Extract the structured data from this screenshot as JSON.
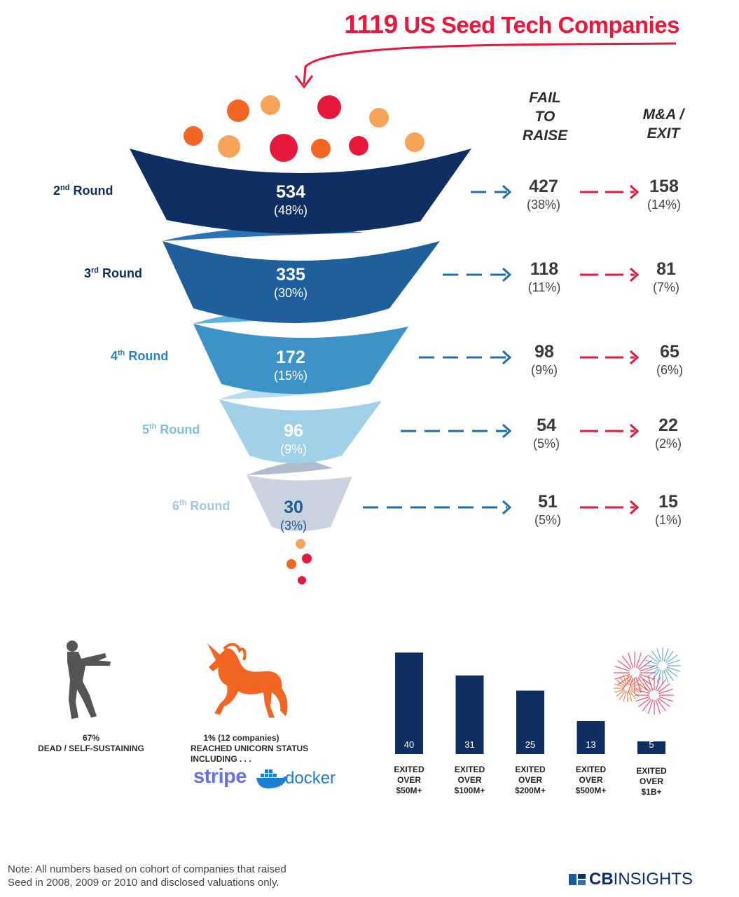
{
  "title": {
    "number": "1119",
    "text": "US Seed Tech Companies"
  },
  "columns": {
    "fail": "FAIL\nTO\nRAISE",
    "exit": "M&A /\nEXIT"
  },
  "colors": {
    "accent_red": "#e8173c",
    "navy": "#0f2f63",
    "blue": "#1d5c98",
    "mid_blue": "#3b8fc6",
    "light_blue": "#8fc6e2",
    "grey": "#c5d0da",
    "orange": "#f26522"
  },
  "chart_data": [
    {
      "type": "funnel",
      "title": "1119 US Seed Tech Companies",
      "stages": [
        {
          "round": "2",
          "suffix": "nd",
          "label": " Round",
          "count": 534,
          "pct": "(48%)",
          "fail": 427,
          "fail_pct": "(38%)",
          "exit": 158,
          "exit_pct": "(14%)"
        },
        {
          "round": "3",
          "suffix": "rd",
          "label": " Round",
          "count": 335,
          "pct": "(30%)",
          "fail": 118,
          "fail_pct": "(11%)",
          "exit": 81,
          "exit_pct": "(7%)"
        },
        {
          "round": "4",
          "suffix": "th",
          "label": " Round",
          "count": 172,
          "pct": "(15%)",
          "fail": 98,
          "fail_pct": "(9%)",
          "exit": 65,
          "exit_pct": "(6%)"
        },
        {
          "round": "5",
          "suffix": "th",
          "label": " Round",
          "count": 96,
          "pct": "(9%)",
          "fail": 54,
          "fail_pct": "(5%)",
          "exit": 22,
          "exit_pct": "(2%)"
        },
        {
          "round": "6",
          "suffix": "th",
          "label": " Round",
          "count": 30,
          "pct": "(3%)",
          "fail": 51,
          "fail_pct": "(5%)",
          "exit": 15,
          "exit_pct": "(1%)"
        }
      ]
    },
    {
      "type": "bar",
      "categories": [
        "EXITED OVER $50M+",
        "EXITED OVER $100M+",
        "EXITED OVER $200M+",
        "EXITED OVER $500M+",
        "EXITED OVER $1B+"
      ],
      "category_lines": [
        [
          "EXITED",
          "OVER",
          "$50M+"
        ],
        [
          "EXITED",
          "OVER",
          "$100M+"
        ],
        [
          "EXITED",
          "OVER",
          "$200M+"
        ],
        [
          "EXITED",
          "OVER",
          "$500M+"
        ],
        [
          "EXITED",
          "OVER",
          "$1B+"
        ]
      ],
      "values": [
        40,
        31,
        25,
        13,
        5
      ],
      "ylim": [
        0,
        42
      ],
      "color": "#0f2f63"
    }
  ],
  "bottom": {
    "dead_pct": "67%",
    "dead_label": "DEAD / SELF-SUSTAINING",
    "unicorn_line1": "1%  (12 companies)",
    "unicorn_line2": "REACHED UNICORN STATUS",
    "unicorn_line3": "INCLUDING . . .",
    "brand1": "stripe",
    "brand2": "docker"
  },
  "note": {
    "line1": "Note: All numbers based on cohort of companies that raised",
    "line2": "Seed in 2008, 2009 or 2010 and disclosed valuations only."
  },
  "logo": {
    "prefix": "CB",
    "text": "INSIGHTS"
  },
  "icons": {
    "zombie": "zombie-icon",
    "unicorn": "unicorn-icon",
    "fireworks": "fireworks-icon",
    "docker_whale": "docker-whale-icon"
  }
}
